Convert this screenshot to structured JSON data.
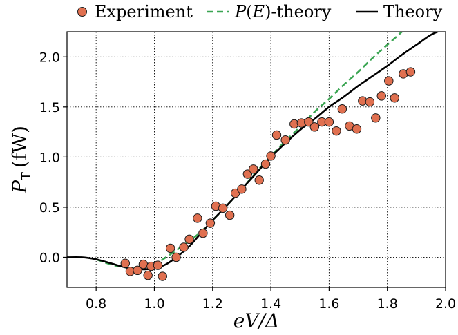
{
  "chart_data": {
    "type": "scatter",
    "xlabel": "eV/Δ",
    "ylabel_main": "P",
    "ylabel_sub": "T",
    "ylabel_unit": "(fW)",
    "xlim": [
      0.7,
      2.0
    ],
    "ylim": [
      -0.3,
      2.25
    ],
    "x_ticks": [
      0.8,
      1.0,
      1.2,
      1.4,
      1.6,
      1.8,
      2.0
    ],
    "x_tick_labels": [
      "0.8",
      "1.0",
      "1.2",
      "1.4",
      "1.6",
      "1.8",
      "2.0"
    ],
    "y_ticks": [
      0.0,
      0.5,
      1.0,
      1.5,
      2.0
    ],
    "y_tick_labels": [
      "0.0",
      "0.5",
      "1.0",
      "1.5",
      "2.0"
    ],
    "grid": true,
    "grid_style": "dotted",
    "legend_position": "top, above plot",
    "series": [
      {
        "name": "Experiment",
        "kind": "scatter",
        "color": "#e07050",
        "edge_color": "#1a1a1a",
        "points": [
          [
            0.9,
            -0.06
          ],
          [
            0.917,
            -0.14
          ],
          [
            0.942,
            -0.13
          ],
          [
            0.962,
            -0.07
          ],
          [
            0.978,
            -0.18
          ],
          [
            0.989,
            -0.09
          ],
          [
            1.012,
            -0.08
          ],
          [
            1.028,
            -0.19
          ],
          [
            1.055,
            0.09
          ],
          [
            1.075,
            0.0
          ],
          [
            1.101,
            0.1
          ],
          [
            1.12,
            0.18
          ],
          [
            1.148,
            0.39
          ],
          [
            1.167,
            0.24
          ],
          [
            1.192,
            0.34
          ],
          [
            1.211,
            0.51
          ],
          [
            1.235,
            0.49
          ],
          [
            1.259,
            0.42
          ],
          [
            1.278,
            0.64
          ],
          [
            1.3,
            0.68
          ],
          [
            1.32,
            0.83
          ],
          [
            1.34,
            0.88
          ],
          [
            1.36,
            0.77
          ],
          [
            1.382,
            0.93
          ],
          [
            1.4,
            1.01
          ],
          [
            1.42,
            1.22
          ],
          [
            1.45,
            1.17
          ],
          [
            1.48,
            1.33
          ],
          [
            1.505,
            1.34
          ],
          [
            1.53,
            1.35
          ],
          [
            1.55,
            1.3
          ],
          [
            1.575,
            1.35
          ],
          [
            1.6,
            1.35
          ],
          [
            1.625,
            1.26
          ],
          [
            1.645,
            1.48
          ],
          [
            1.67,
            1.31
          ],
          [
            1.695,
            1.28
          ],
          [
            1.715,
            1.56
          ],
          [
            1.74,
            1.55
          ],
          [
            1.76,
            1.39
          ],
          [
            1.78,
            1.61
          ],
          [
            1.805,
            1.76
          ],
          [
            1.825,
            1.59
          ],
          [
            1.855,
            1.83
          ],
          [
            1.88,
            1.85
          ]
        ]
      },
      {
        "name": "P(E)-theory",
        "kind": "line",
        "dash": true,
        "color": "#3aa552",
        "points": [
          [
            0.8,
            -0.02
          ],
          [
            0.85,
            -0.07
          ],
          [
            0.9,
            -0.1
          ],
          [
            0.95,
            -0.1
          ],
          [
            1.0,
            -0.07
          ],
          [
            1.05,
            0.02
          ],
          [
            1.1,
            0.12
          ],
          [
            1.15,
            0.23
          ],
          [
            1.2,
            0.37
          ],
          [
            1.25,
            0.52
          ],
          [
            1.3,
            0.68
          ],
          [
            1.35,
            0.85
          ],
          [
            1.4,
            1.01
          ],
          [
            1.45,
            1.16
          ],
          [
            1.5,
            1.3
          ],
          [
            1.55,
            1.45
          ],
          [
            1.6,
            1.58
          ],
          [
            1.65,
            1.72
          ],
          [
            1.7,
            1.85
          ],
          [
            1.75,
            1.99
          ],
          [
            1.8,
            2.12
          ],
          [
            1.85,
            2.25
          ]
        ]
      },
      {
        "name": "Theory",
        "kind": "line",
        "dash": false,
        "color": "#000000",
        "points": [
          [
            0.7,
            0.0
          ],
          [
            0.75,
            0.0
          ],
          [
            0.8,
            -0.02
          ],
          [
            0.85,
            -0.06
          ],
          [
            0.9,
            -0.1
          ],
          [
            0.95,
            -0.12
          ],
          [
            1.0,
            -0.11
          ],
          [
            1.04,
            -0.07
          ],
          [
            1.08,
            0.01
          ],
          [
            1.12,
            0.11
          ],
          [
            1.16,
            0.24
          ],
          [
            1.2,
            0.37
          ],
          [
            1.25,
            0.52
          ],
          [
            1.3,
            0.68
          ],
          [
            1.35,
            0.84
          ],
          [
            1.4,
            1.0
          ],
          [
            1.45,
            1.14
          ],
          [
            1.5,
            1.27
          ],
          [
            1.55,
            1.38
          ],
          [
            1.6,
            1.5
          ],
          [
            1.65,
            1.6
          ],
          [
            1.7,
            1.71
          ],
          [
            1.75,
            1.81
          ],
          [
            1.8,
            1.91
          ],
          [
            1.85,
            2.02
          ],
          [
            1.9,
            2.12
          ],
          [
            1.95,
            2.22
          ],
          [
            2.0,
            2.28
          ]
        ]
      }
    ]
  }
}
